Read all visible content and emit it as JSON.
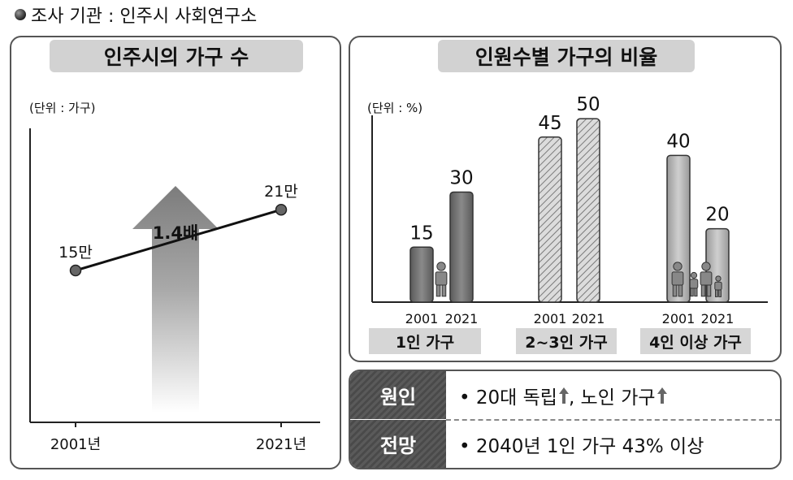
{
  "source": "조사 기관 : 인주시 사회연구소",
  "colors": {
    "bar_dark": "#6e6e6e",
    "bar_hatch": "#c4c4c4",
    "bar_light": "#b4b4b4",
    "panel_border": "#555555",
    "head_bg": "#4f4f4f"
  },
  "left_panel": {
    "title": "인주시의 가구 수",
    "unit": "(단위 : 가구)",
    "arrow_label": "1.4배"
  },
  "right_panel": {
    "title": "인원수별 가구의 비율",
    "unit": "(단위 : %)"
  },
  "info": {
    "rows": [
      {
        "head": "원인",
        "text": "• 20대 독립",
        "text2": ", 노인 가구"
      },
      {
        "head": "전망",
        "text": "• 2040년 1인 가구 43% 이상"
      }
    ],
    "icon": "up-arrow-icon"
  },
  "chart_data": [
    {
      "type": "line",
      "title": "인주시의 가구 수",
      "unit": "(단위 : 가구)",
      "x": [
        "2001년",
        "2021년"
      ],
      "series": [
        {
          "values": [
            150000,
            210000
          ]
        }
      ],
      "data_labels": [
        "15만",
        "21만"
      ],
      "annotation": "1.4배",
      "ylim": [
        0,
        300000
      ],
      "grid": false
    },
    {
      "type": "bar",
      "title": "인원수별 가구의 비율",
      "unit": "(단위 : %)",
      "groups": [
        {
          "label": "1인 가구",
          "years": [
            "2001",
            "2021"
          ],
          "values": [
            15,
            30
          ],
          "style": "dark",
          "icon": "person-icon"
        },
        {
          "label": "2~3인 가구",
          "years": [
            "2001",
            "2021"
          ],
          "values": [
            45,
            50
          ],
          "style": "hatched"
        },
        {
          "label": "4인 이상 가구",
          "years": [
            "2001",
            "2021"
          ],
          "values": [
            40,
            20
          ],
          "style": "light",
          "icon": "family-icon"
        }
      ],
      "ylim": [
        0,
        60
      ],
      "grid": false
    }
  ]
}
